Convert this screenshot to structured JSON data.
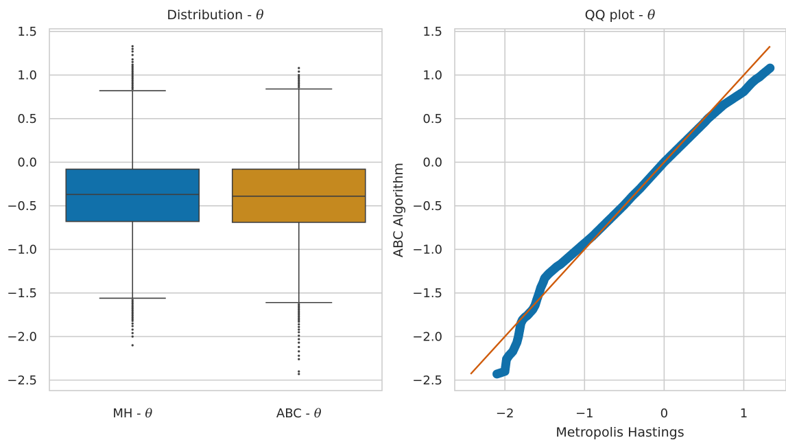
{
  "chart_data": [
    {
      "type": "box",
      "title": "Distribution - ",
      "title_symbol": "θ",
      "xlabel": "",
      "ylabel": "",
      "ylim": [
        -2.62,
        1.53
      ],
      "yticks": [
        1.5,
        1.0,
        0.5,
        0.0,
        -0.5,
        -1.0,
        -1.5,
        -2.0,
        -2.5
      ],
      "ytick_labels": [
        "1.5",
        "1.0",
        "0.5",
        "0.0",
        "−0.5",
        "−1.0",
        "−1.5",
        "−2.0",
        "−2.5"
      ],
      "grid": "horizontal",
      "categories": [
        {
          "label": "MH - ",
          "symbol": "θ",
          "color": "#1170aa",
          "q1": -0.68,
          "median": -0.37,
          "q3": -0.08,
          "whisker_low": -1.56,
          "whisker_high": 0.82,
          "outliers_high": [
            0.84,
            0.86,
            0.88,
            0.9,
            0.92,
            0.94,
            0.96,
            0.98,
            1.0,
            1.02,
            1.04,
            1.06,
            1.08,
            1.1,
            1.12,
            1.15,
            1.18,
            1.23,
            1.27,
            1.3,
            1.33
          ],
          "outliers_low": [
            -1.58,
            -1.6,
            -1.62,
            -1.64,
            -1.66,
            -1.68,
            -1.7,
            -1.72,
            -1.74,
            -1.76,
            -1.78,
            -1.8,
            -1.82,
            -1.85,
            -1.88,
            -1.92,
            -1.96,
            -2.0,
            -2.1
          ]
        },
        {
          "label": "ABC - ",
          "symbol": "θ",
          "color": "#c5891f",
          "q1": -0.69,
          "median": -0.39,
          "q3": -0.08,
          "whisker_low": -1.61,
          "whisker_high": 0.84,
          "outliers_high": [
            0.86,
            0.88,
            0.9,
            0.92,
            0.94,
            0.96,
            0.98,
            1.0,
            1.04,
            1.08
          ],
          "outliers_low": [
            -1.63,
            -1.65,
            -1.67,
            -1.69,
            -1.71,
            -1.73,
            -1.75,
            -1.77,
            -1.79,
            -1.81,
            -1.83,
            -1.86,
            -1.89,
            -1.92,
            -1.95,
            -1.99,
            -2.03,
            -2.07,
            -2.12,
            -2.17,
            -2.22,
            -2.26,
            -2.4,
            -2.43
          ]
        }
      ]
    },
    {
      "type": "scatter",
      "title": "QQ plot - ",
      "title_symbol": "θ",
      "xlabel": "Metropolis Hastings",
      "ylabel": "ABC Algorithm",
      "xlim": [
        -2.63,
        1.53
      ],
      "ylim": [
        -2.62,
        1.53
      ],
      "xticks": [
        -2,
        -1,
        0,
        1
      ],
      "xtick_labels": [
        "−2",
        "−1",
        "0",
        "1"
      ],
      "yticks": [
        1.5,
        1.0,
        0.5,
        0.0,
        -0.5,
        -1.0,
        -1.5,
        -2.0,
        -2.5
      ],
      "ytick_labels": [
        "1.5",
        "1.0",
        "0.5",
        "0.0",
        "−0.5",
        "−1.0",
        "−1.5",
        "−2.0",
        "−2.5"
      ],
      "grid": "both",
      "point_color": "#1170aa",
      "line_color": "#cf5b0b",
      "reference_line": {
        "x": [
          -2.43,
          1.33
        ],
        "y": [
          -2.43,
          1.33
        ]
      },
      "points": {
        "x": [
          -2.1,
          -2.0,
          -1.98,
          -1.95,
          -1.9,
          -1.85,
          -1.83,
          -1.82,
          -1.81,
          -1.8,
          -1.78,
          -1.75,
          -1.72,
          -1.7,
          -1.68,
          -1.65,
          -1.62,
          -1.6,
          -1.57,
          -1.55,
          -1.52,
          -1.5,
          -1.45,
          -1.4,
          -1.35,
          -1.3,
          -1.25,
          -1.2,
          -1.15,
          -1.1,
          -1.05,
          -1.0,
          -0.9,
          -0.8,
          -0.7,
          -0.6,
          -0.5,
          -0.4,
          -0.3,
          -0.2,
          -0.1,
          0.0,
          0.1,
          0.2,
          0.3,
          0.4,
          0.5,
          0.55,
          0.6,
          0.65,
          0.7,
          0.75,
          0.8,
          0.85,
          0.9,
          0.95,
          1.0,
          1.05,
          1.1,
          1.15,
          1.2,
          1.25,
          1.33
        ],
        "y": [
          -2.43,
          -2.4,
          -2.26,
          -2.22,
          -2.17,
          -2.07,
          -2.0,
          -1.95,
          -1.9,
          -1.85,
          -1.81,
          -1.78,
          -1.76,
          -1.74,
          -1.72,
          -1.69,
          -1.64,
          -1.58,
          -1.5,
          -1.44,
          -1.38,
          -1.33,
          -1.28,
          -1.24,
          -1.2,
          -1.17,
          -1.13,
          -1.09,
          -1.05,
          -1.01,
          -0.97,
          -0.93,
          -0.85,
          -0.76,
          -0.67,
          -0.58,
          -0.49,
          -0.39,
          -0.3,
          -0.2,
          -0.1,
          0.0,
          0.09,
          0.18,
          0.27,
          0.36,
          0.45,
          0.5,
          0.54,
          0.58,
          0.62,
          0.66,
          0.69,
          0.72,
          0.75,
          0.78,
          0.81,
          0.86,
          0.91,
          0.95,
          0.98,
          1.02,
          1.08
        ]
      }
    }
  ]
}
